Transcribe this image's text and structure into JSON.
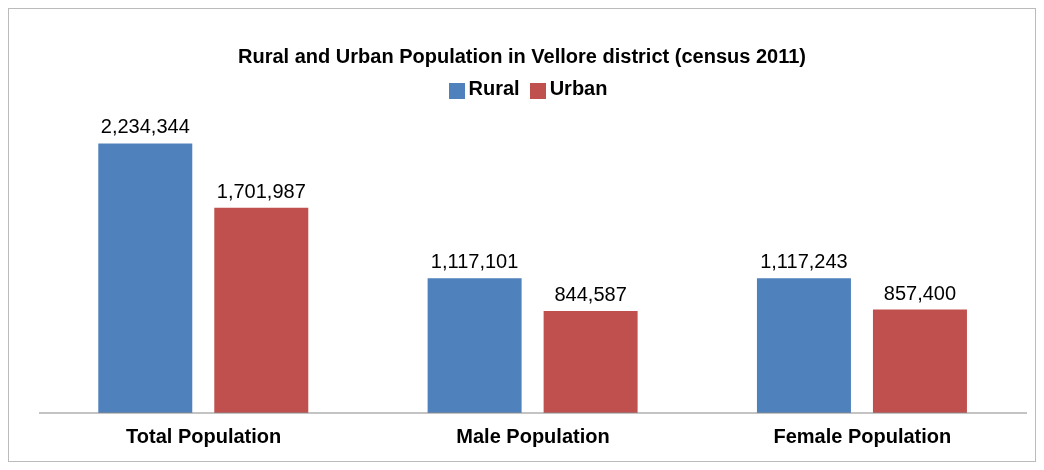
{
  "chart_data": {
    "type": "bar",
    "title": "Rural and Urban Population in Vellore district (census 2011)",
    "categories": [
      "Total Population",
      "Male Population",
      "Female Population"
    ],
    "series": [
      {
        "name": "Rural",
        "color": "#4f81bd",
        "values": [
          2234344,
          1117101,
          1117243
        ],
        "value_labels": [
          "2,234,344",
          "1,117,101",
          "1,117,243"
        ]
      },
      {
        "name": "Urban",
        "color": "#c0504d",
        "values": [
          1701987,
          844587,
          857400
        ],
        "value_labels": [
          "1,701,987",
          "844,587",
          "857,400"
        ]
      }
    ],
    "legend": "top",
    "grid": false
  }
}
